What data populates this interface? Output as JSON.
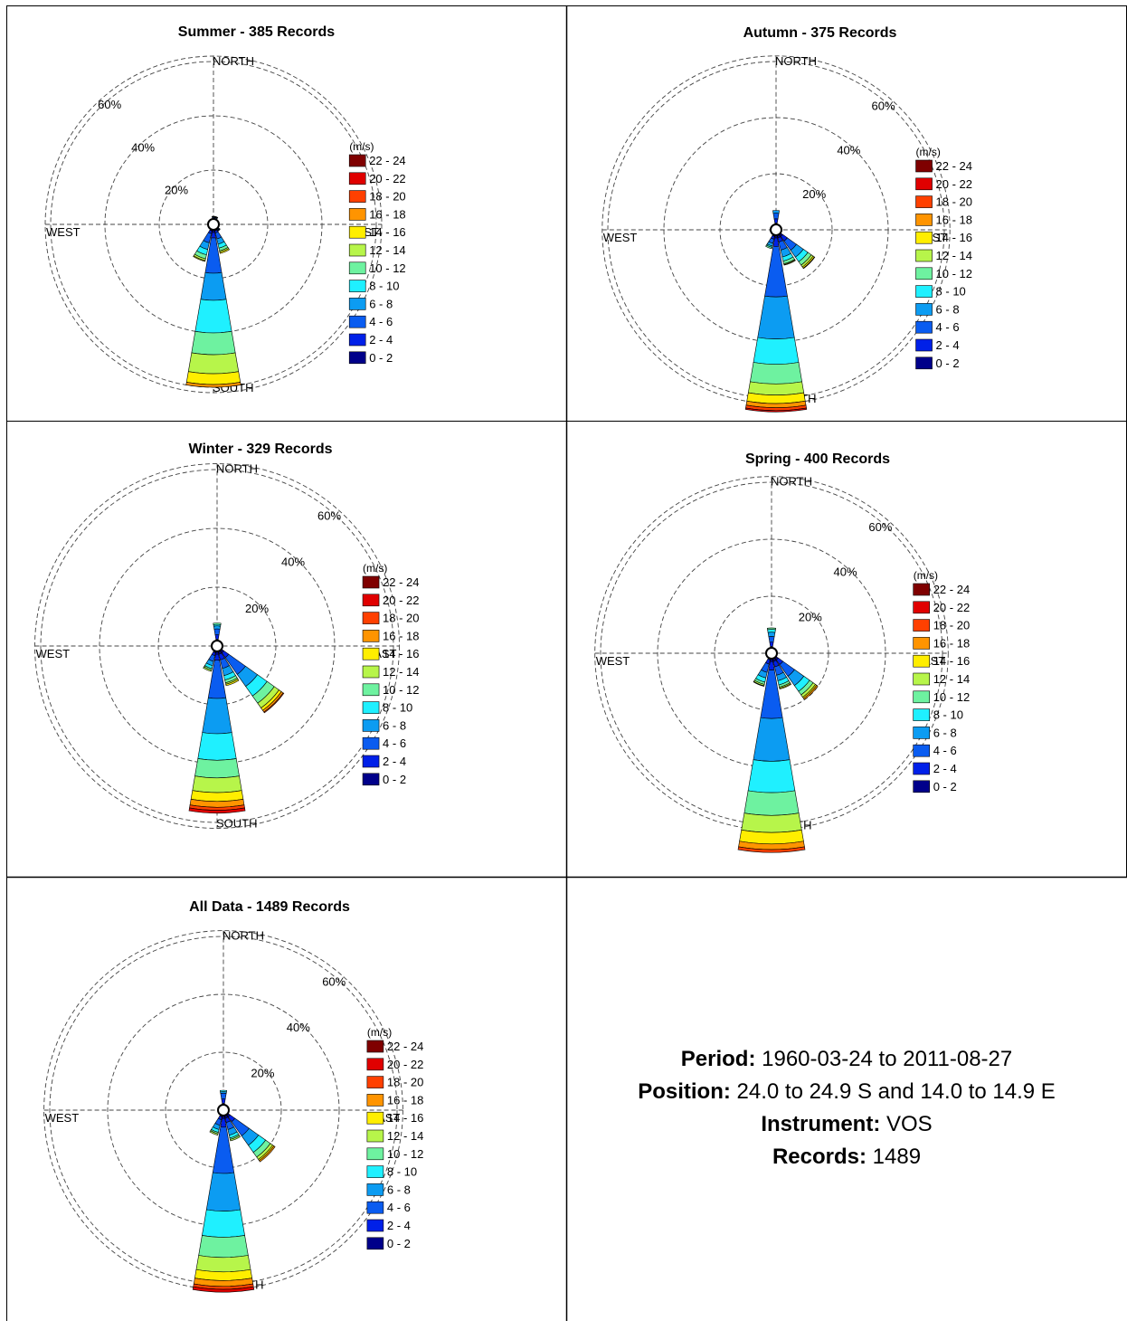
{
  "legend": {
    "unit": "(m/s)",
    "bins": [
      {
        "label": "22 - 24",
        "color": "#7f0000"
      },
      {
        "label": "20 - 22",
        "color": "#e00000"
      },
      {
        "label": "18 - 20",
        "color": "#ff4000"
      },
      {
        "label": "16 - 18",
        "color": "#ff9400"
      },
      {
        "label": "14 - 16",
        "color": "#ffee00"
      },
      {
        "label": "12 - 14",
        "color": "#b7f54a"
      },
      {
        "label": "10 - 12",
        "color": "#6ef2a0"
      },
      {
        "label": "8 - 10",
        "color": "#1ff0ff"
      },
      {
        "label": "6 - 8",
        "color": "#0c9cf2"
      },
      {
        "label": "4 - 6",
        "color": "#0a5cf0"
      },
      {
        "label": "2 - 4",
        "color": "#0020e8"
      },
      {
        "label": "0 - 2",
        "color": "#00008a"
      }
    ]
  },
  "compass": {
    "north": "NORTH",
    "south": "SOUTH",
    "east": "EAST",
    "west": "WEST"
  },
  "info": {
    "period_label": "Period:",
    "period_value": "1960-03-24 to 2011-08-27",
    "position_label": "Position:",
    "position_value": "24.0 to 24.9 S and 14.0 to 14.9 E",
    "instrument_label": "Instrument:",
    "instrument_value": "VOS",
    "records_label": "Records:",
    "records_value": "1489"
  },
  "chart_data": [
    {
      "type": "wind-rose",
      "title": "Summer - 385 Records",
      "rings": [
        "20%",
        "40%",
        "60%"
      ],
      "ring_values": [
        20,
        40,
        60
      ],
      "directions_deg": [
        0,
        22.5,
        135,
        157.5,
        180,
        202.5
      ],
      "frequency_pct": [
        1,
        1,
        1,
        9,
        58,
        12
      ],
      "speed_bins_ms": [
        "0-2",
        "2-4",
        "4-6",
        "6-8",
        "8-10",
        "10-12",
        "12-14",
        "14-16",
        "16-18",
        "18-20",
        "20-22",
        "22-24"
      ],
      "cumulative_pct_by_direction": [
        [
          0.1,
          0.3,
          0.6,
          0.8,
          0.9,
          1,
          1,
          1,
          1,
          1,
          1,
          1
        ],
        [
          0.1,
          0.3,
          0.6,
          0.8,
          0.9,
          1,
          1,
          1,
          1,
          1,
          1,
          1
        ],
        [
          0.1,
          0.3,
          0.6,
          0.8,
          0.9,
          1,
          1,
          1,
          1,
          1,
          1,
          1
        ],
        [
          0.4,
          1.2,
          3.5,
          5.5,
          7,
          8,
          8.5,
          9,
          9,
          9,
          9,
          9
        ],
        [
          1,
          3,
          16,
          26,
          38,
          46,
          53,
          57,
          58,
          58,
          58,
          58
        ],
        [
          0.5,
          1.5,
          5,
          7.5,
          9.5,
          11,
          11.7,
          12,
          12,
          12,
          12,
          12
        ]
      ]
    },
    {
      "type": "wind-rose",
      "title": "Autumn - 375 Records",
      "rings": [
        "20%",
        "40%",
        "60%"
      ],
      "ring_values": [
        20,
        40,
        60
      ],
      "directions_deg": [
        0,
        135,
        157.5,
        180,
        202.5
      ],
      "frequency_pct": [
        5,
        15,
        11,
        63,
        5
      ],
      "speed_bins_ms": [
        "0-2",
        "2-4",
        "4-6",
        "6-8",
        "8-10",
        "10-12",
        "12-14",
        "14-16",
        "16-18",
        "18-20",
        "20-22",
        "22-24"
      ],
      "cumulative_pct_by_direction": [
        [
          0.5,
          2,
          4,
          5,
          5,
          5,
          5,
          5,
          5,
          5,
          5,
          5
        ],
        [
          1,
          3,
          7,
          10,
          12,
          13.5,
          14.3,
          14.8,
          15,
          15,
          15,
          15
        ],
        [
          1,
          2.5,
          5.5,
          8,
          9.5,
          10.5,
          10.8,
          11,
          11,
          11,
          11,
          11
        ],
        [
          1,
          4,
          22,
          37,
          46,
          53,
          57,
          60,
          61.5,
          62.5,
          63,
          63
        ],
        [
          0.5,
          1.5,
          3,
          4,
          4.5,
          5,
          5,
          5,
          5,
          5,
          5,
          5
        ]
      ]
    },
    {
      "type": "wind-rose",
      "title": "Winter - 329 Records",
      "rings": [
        "20%",
        "40%",
        "60%"
      ],
      "ring_values": [
        20,
        40,
        60
      ],
      "directions_deg": [
        0,
        135,
        157.5,
        180,
        202.5
      ],
      "frequency_pct": [
        6,
        26,
        12,
        55,
        7
      ],
      "speed_bins_ms": [
        "0-2",
        "2-4",
        "4-6",
        "6-8",
        "8-10",
        "10-12",
        "12-14",
        "14-16",
        "16-18",
        "18-20",
        "20-22",
        "22-24"
      ],
      "cumulative_pct_by_direction": [
        [
          0.5,
          2,
          4,
          5,
          5.5,
          6,
          6,
          6,
          6,
          6,
          6,
          6
        ],
        [
          1,
          3,
          10,
          15,
          19,
          22,
          24,
          25,
          25.7,
          26,
          26,
          26
        ],
        [
          1,
          3,
          6,
          8.5,
          10,
          11,
          11.5,
          12,
          12,
          12,
          12,
          12
        ],
        [
          1,
          3,
          16,
          28,
          37,
          43,
          48,
          51,
          53,
          54,
          55,
          55
        ],
        [
          0.5,
          1.5,
          3.5,
          5,
          6,
          6.5,
          7,
          7,
          7,
          7,
          7,
          7
        ]
      ]
    },
    {
      "type": "wind-rose",
      "title": "Spring - 400 Records",
      "rings": [
        "20%",
        "40%",
        "60%"
      ],
      "ring_values": [
        20,
        40,
        60
      ],
      "directions_deg": [
        0,
        135,
        157.5,
        180,
        202.5
      ],
      "frequency_pct": [
        7,
        18,
        11,
        68,
        10
      ],
      "speed_bins_ms": [
        "0-2",
        "2-4",
        "4-6",
        "6-8",
        "8-10",
        "10-12",
        "12-14",
        "14-16",
        "16-18",
        "18-20",
        "20-22",
        "22-24"
      ],
      "cumulative_pct_by_direction": [
        [
          0.5,
          2,
          4,
          5.5,
          6.5,
          7,
          7,
          7,
          7,
          7,
          7,
          7
        ],
        [
          1,
          3,
          8,
          12,
          14.5,
          16,
          17,
          17.5,
          18,
          18,
          18,
          18
        ],
        [
          1,
          3,
          6,
          8,
          9.5,
          10.3,
          10.7,
          11,
          11,
          11,
          11,
          11
        ],
        [
          1,
          4,
          21,
          36,
          47,
          55,
          61,
          65,
          67,
          68,
          68,
          68
        ],
        [
          0.5,
          2,
          5,
          7,
          8.5,
          9.3,
          9.8,
          10,
          10,
          10,
          10,
          10
        ]
      ]
    },
    {
      "type": "wind-rose",
      "title": "All Data - 1489 Records",
      "rings": [
        "20%",
        "40%",
        "60%"
      ],
      "ring_values": [
        20,
        40,
        60
      ],
      "directions_deg": [
        0,
        135,
        157.5,
        180,
        202.5
      ],
      "frequency_pct": [
        5,
        20,
        9,
        61,
        7
      ],
      "speed_bins_ms": [
        "0-2",
        "2-4",
        "4-6",
        "6-8",
        "8-10",
        "10-12",
        "12-14",
        "14-16",
        "16-18",
        "18-20",
        "20-22",
        "22-24"
      ],
      "cumulative_pct_by_direction": [
        [
          0.5,
          2,
          4,
          4.5,
          5,
          5,
          5,
          5,
          5,
          5,
          5,
          5
        ],
        [
          1,
          3,
          9,
          13,
          16,
          18,
          19,
          19.5,
          20,
          20,
          20,
          20
        ],
        [
          1,
          2.5,
          5,
          7,
          8,
          8.5,
          9,
          9,
          9,
          9,
          9,
          9
        ],
        [
          1,
          4,
          20,
          33,
          42,
          49,
          54,
          57,
          59,
          60,
          61,
          61
        ],
        [
          0.5,
          1.5,
          3.5,
          5,
          6,
          6.5,
          7,
          7,
          7,
          7,
          7,
          7
        ]
      ]
    }
  ]
}
